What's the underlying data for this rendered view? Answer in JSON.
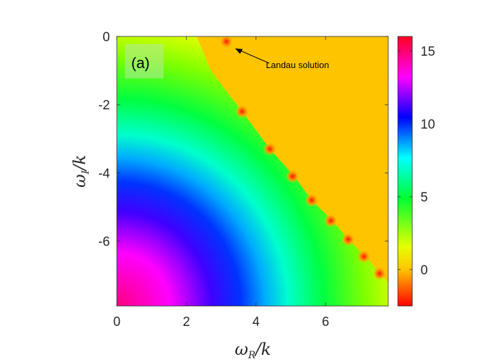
{
  "chart_data": {
    "type": "heatmap",
    "panel_label": "(a)",
    "xlabel": {
      "main": "ω",
      "sub": "R",
      "suffix": "/k"
    },
    "ylabel": {
      "main": "ω",
      "sub": "I",
      "suffix": "/k"
    },
    "xlim": [
      0,
      7.8
    ],
    "ylim": [
      -7.9,
      0
    ],
    "xticks": [
      0,
      2,
      4,
      6
    ],
    "xtick_labels": [
      "0",
      "2",
      "4",
      "6"
    ],
    "yticks": [
      0,
      -2,
      -4,
      -6
    ],
    "ytick_labels": [
      "0",
      "-2",
      "-4",
      "-6"
    ],
    "colorbar": {
      "range": [
        -2.5,
        16
      ],
      "ticks": [
        0,
        5,
        10,
        15
      ],
      "tick_labels": [
        "0",
        "5",
        "10",
        "15"
      ],
      "colormap": "hsv"
    },
    "boundary_points": [
      {
        "x": 2.3,
        "y": 0.0
      },
      {
        "x": 2.7,
        "y": -1.0
      },
      {
        "x": 3.6,
        "y": -2.2
      },
      {
        "x": 4.4,
        "y": -3.3
      },
      {
        "x": 5.1,
        "y": -4.1
      },
      {
        "x": 5.6,
        "y": -4.8
      },
      {
        "x": 6.2,
        "y": -5.4
      },
      {
        "x": 6.7,
        "y": -6.0
      },
      {
        "x": 7.2,
        "y": -6.5
      },
      {
        "x": 7.6,
        "y": -7.0
      },
      {
        "x": 7.8,
        "y": -7.2
      }
    ],
    "landau_roots": [
      {
        "x": 3.15,
        "y": -0.15
      },
      {
        "x": 3.6,
        "y": -2.2
      },
      {
        "x": 4.4,
        "y": -3.3
      },
      {
        "x": 5.05,
        "y": -4.1
      },
      {
        "x": 5.6,
        "y": -4.8
      },
      {
        "x": 6.15,
        "y": -5.4
      },
      {
        "x": 6.65,
        "y": -5.95
      },
      {
        "x": 7.1,
        "y": -6.45
      },
      {
        "x": 7.55,
        "y": -6.95
      }
    ],
    "annotation": {
      "text": "Landau solution",
      "points_to": {
        "x": 3.4,
        "y": -0.35
      }
    }
  }
}
